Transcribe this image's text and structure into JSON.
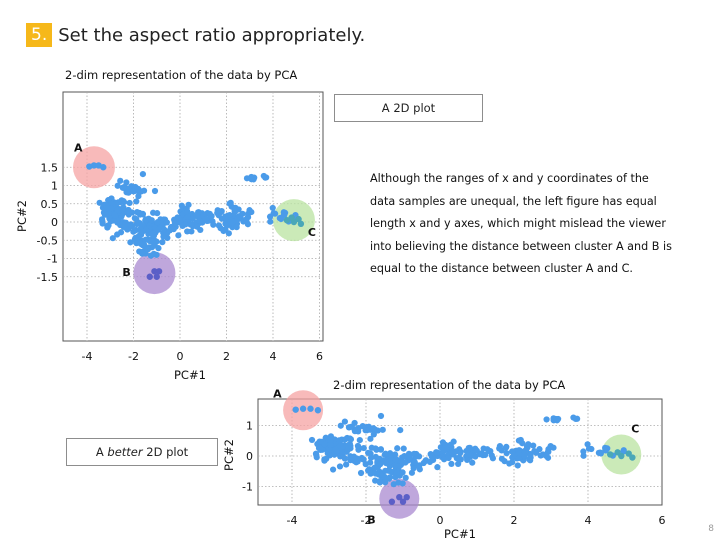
{
  "heading": {
    "number": "5.",
    "text": "Set the aspect ratio appropriately."
  },
  "chart_data": [
    {
      "type": "scatter",
      "title": "2-dim representation of the data by PCA",
      "xlabel": "PC#1",
      "ylabel": "PC#2",
      "xlim": [
        -5,
        6
      ],
      "ylim": [
        -1.7,
        1.75
      ],
      "xticks": [
        "-4",
        "-2",
        "0",
        "2",
        "4",
        "6"
      ],
      "yticks": [
        "1.5",
        "1",
        "0.5",
        "0",
        "-0.5",
        "-1",
        "-1.5"
      ],
      "grid": true,
      "clusters": [
        {
          "label": "A",
          "x": -3.7,
          "y": 1.5,
          "color": "#f5a3a3"
        },
        {
          "label": "B",
          "x": -1.1,
          "y": -1.4,
          "color": "#a98ad0"
        },
        {
          "label": "C",
          "x": 4.9,
          "y": 0.05,
          "color": "#b9e3a0"
        }
      ]
    },
    {
      "type": "scatter",
      "title": "2-dim representation of the data by PCA",
      "xlabel": "PC#1",
      "ylabel": "PC#2",
      "xlim": [
        -5,
        6
      ],
      "ylim": [
        -1.7,
        1.75
      ],
      "xticks": [
        "-4",
        "-2",
        "0",
        "2",
        "4",
        "6"
      ],
      "yticks": [
        "1",
        "0",
        "-1"
      ],
      "grid": true,
      "clusters": [
        {
          "label": "A",
          "x": -3.7,
          "y": 1.5,
          "color": "#f5a3a3"
        },
        {
          "label": "B",
          "x": -1.1,
          "y": -1.4,
          "color": "#a98ad0"
        },
        {
          "label": "C",
          "x": 4.9,
          "y": 0.05,
          "color": "#b9e3a0"
        }
      ]
    }
  ],
  "top_box": "A 2D plot",
  "bottom_box": {
    "prefix": "A ",
    "emph": "better",
    "suffix": " 2D plot"
  },
  "description": [
    "Although the ranges of x and y coordinates of the",
    "data samples are unequal, the left figure has equal",
    "length x and y axes, which might mislead the viewer",
    "into believing the distance between cluster A and B is",
    "equal to the distance between cluster A and C."
  ],
  "page_number": "8"
}
